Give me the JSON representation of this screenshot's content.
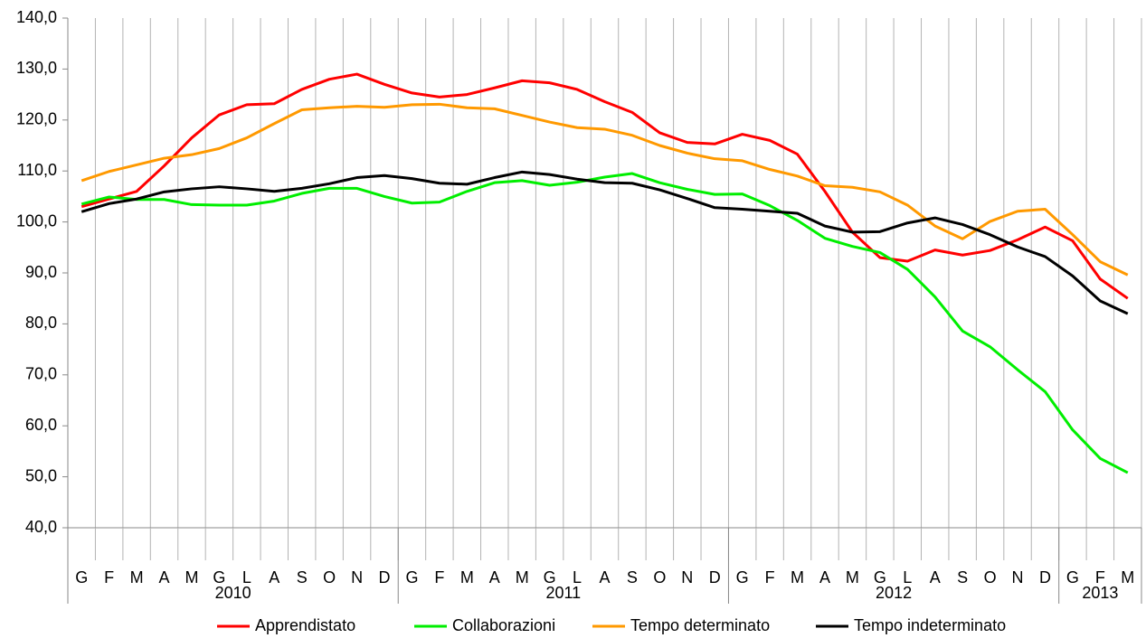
{
  "chart_data": {
    "type": "line",
    "categories": [
      "G",
      "F",
      "M",
      "A",
      "M",
      "G",
      "L",
      "A",
      "S",
      "O",
      "N",
      "D",
      "G",
      "F",
      "M",
      "A",
      "M",
      "G",
      "L",
      "A",
      "S",
      "O",
      "N",
      "D",
      "G",
      "F",
      "M",
      "A",
      "M",
      "G",
      "L",
      "A",
      "S",
      "O",
      "N",
      "D",
      "G",
      "F",
      "M"
    ],
    "year_groups": [
      {
        "label": "2010",
        "months": 12
      },
      {
        "label": "2011",
        "months": 12
      },
      {
        "label": "2012",
        "months": 12
      },
      {
        "label": "2013",
        "months": 3
      }
    ],
    "ylim": [
      40,
      140
    ],
    "yticks": [
      {
        "value": 40,
        "label": "40,0"
      },
      {
        "value": 50,
        "label": "50,0"
      },
      {
        "value": 60,
        "label": "60,0"
      },
      {
        "value": 70,
        "label": "70,0"
      },
      {
        "value": 80,
        "label": "80,0"
      },
      {
        "value": 90,
        "label": "90,0"
      },
      {
        "value": 100,
        "label": "100,0"
      },
      {
        "value": 110,
        "label": "110,0"
      },
      {
        "value": 120,
        "label": "120,0"
      },
      {
        "value": 130,
        "label": "130,0"
      },
      {
        "value": 140,
        "label": "140,0"
      }
    ],
    "vertical_grid": true,
    "legend": "bottom",
    "series": [
      {
        "name": "Apprendistato",
        "color": "#ff0000",
        "values": [
          103,
          104.5,
          106,
          111,
          116.5,
          121,
          123,
          123.2,
          126,
          128,
          129,
          127,
          125.3,
          124.5,
          125,
          126.3,
          127.7,
          127.3,
          126,
          123.6,
          121.5,
          117.5,
          115.6,
          115.3,
          117.2,
          116,
          113.3,
          106,
          98,
          93,
          92.3,
          94.5,
          93.5,
          94.4,
          96.5,
          99,
          96.3,
          88.8,
          85
        ]
      },
      {
        "name": "Collaborazioni",
        "color": "#00ee00",
        "values": [
          103.5,
          104.9,
          104.4,
          104.4,
          103.4,
          103.3,
          103.3,
          104.1,
          105.6,
          106.6,
          106.6,
          105,
          103.7,
          103.9,
          106,
          107.7,
          108.1,
          107.2,
          107.8,
          108.8,
          109.5,
          107.7,
          106.4,
          105.4,
          105.5,
          103.2,
          100.3,
          96.8,
          95.2,
          94,
          90.7,
          85.3,
          78.6,
          75.5,
          71,
          66.7,
          59.2,
          53.6,
          50.8
        ]
      },
      {
        "name": "Tempo determinato",
        "color": "#ff9900",
        "values": [
          108.1,
          109.9,
          111.2,
          112.5,
          113.2,
          114.4,
          116.5,
          119.3,
          122,
          122.4,
          122.7,
          122.5,
          123,
          123.1,
          122.4,
          122.2,
          120.9,
          119.6,
          118.5,
          118.2,
          117,
          115,
          113.5,
          112.4,
          112,
          110.3,
          109,
          107.1,
          106.8,
          105.9,
          103.3,
          99.2,
          96.7,
          100.1,
          102.1,
          102.5,
          97.5,
          92.2,
          89.6
        ]
      },
      {
        "name": "Tempo indeterminato",
        "color": "#000000",
        "values": [
          102,
          103.6,
          104.5,
          105.9,
          106.5,
          106.9,
          106.5,
          106,
          106.6,
          107.5,
          108.7,
          109.1,
          108.5,
          107.6,
          107.4,
          108.7,
          109.8,
          109.3,
          108.4,
          107.7,
          107.6,
          106.3,
          104.6,
          102.8,
          102.5,
          102.1,
          101.7,
          99.2,
          98,
          98.1,
          99.8,
          100.8,
          99.5,
          97.5,
          95.1,
          93.2,
          89.4,
          84.5,
          82
        ]
      }
    ]
  }
}
